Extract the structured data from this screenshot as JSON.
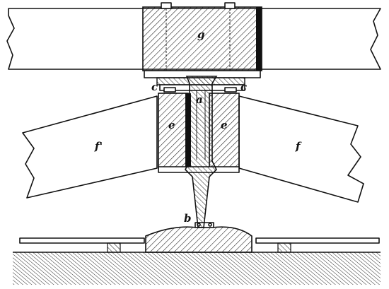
{
  "labels": {
    "g": "g",
    "a": "a",
    "c_left": "c",
    "c_right": "c",
    "e_left": "e",
    "e_right": "e",
    "f_left": "f'",
    "f_right": "f",
    "b": "b"
  }
}
